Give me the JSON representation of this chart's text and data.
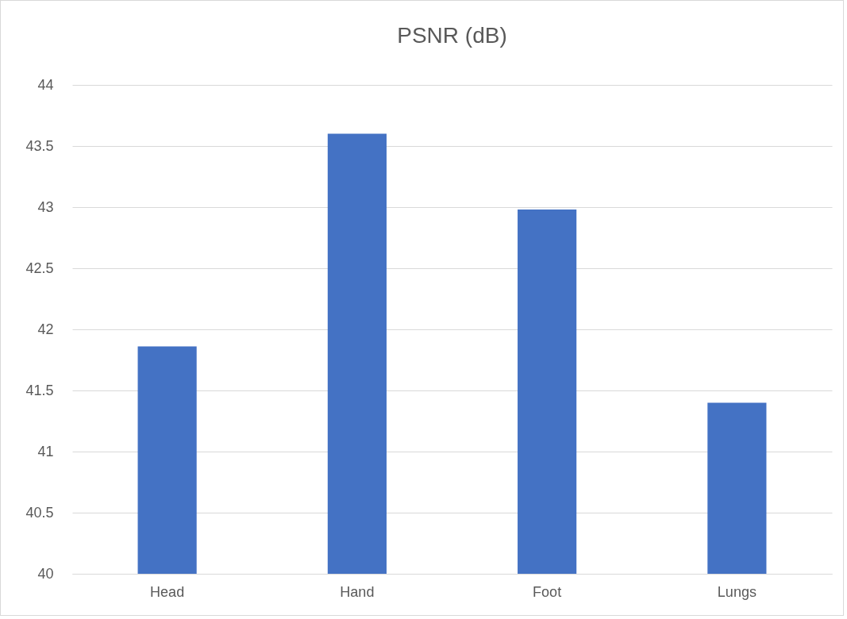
{
  "chart_data": {
    "type": "bar",
    "title": "PSNR (dB)",
    "categories": [
      "Head",
      "Hand",
      "Foot",
      "Lungs"
    ],
    "values": [
      41.86,
      43.6,
      42.98,
      41.4
    ],
    "color": "#4472c4",
    "ylim": [
      40,
      44
    ],
    "yticks": [
      40,
      40.5,
      41,
      41.5,
      42,
      42.5,
      43,
      43.5,
      44
    ],
    "grid": "y"
  }
}
